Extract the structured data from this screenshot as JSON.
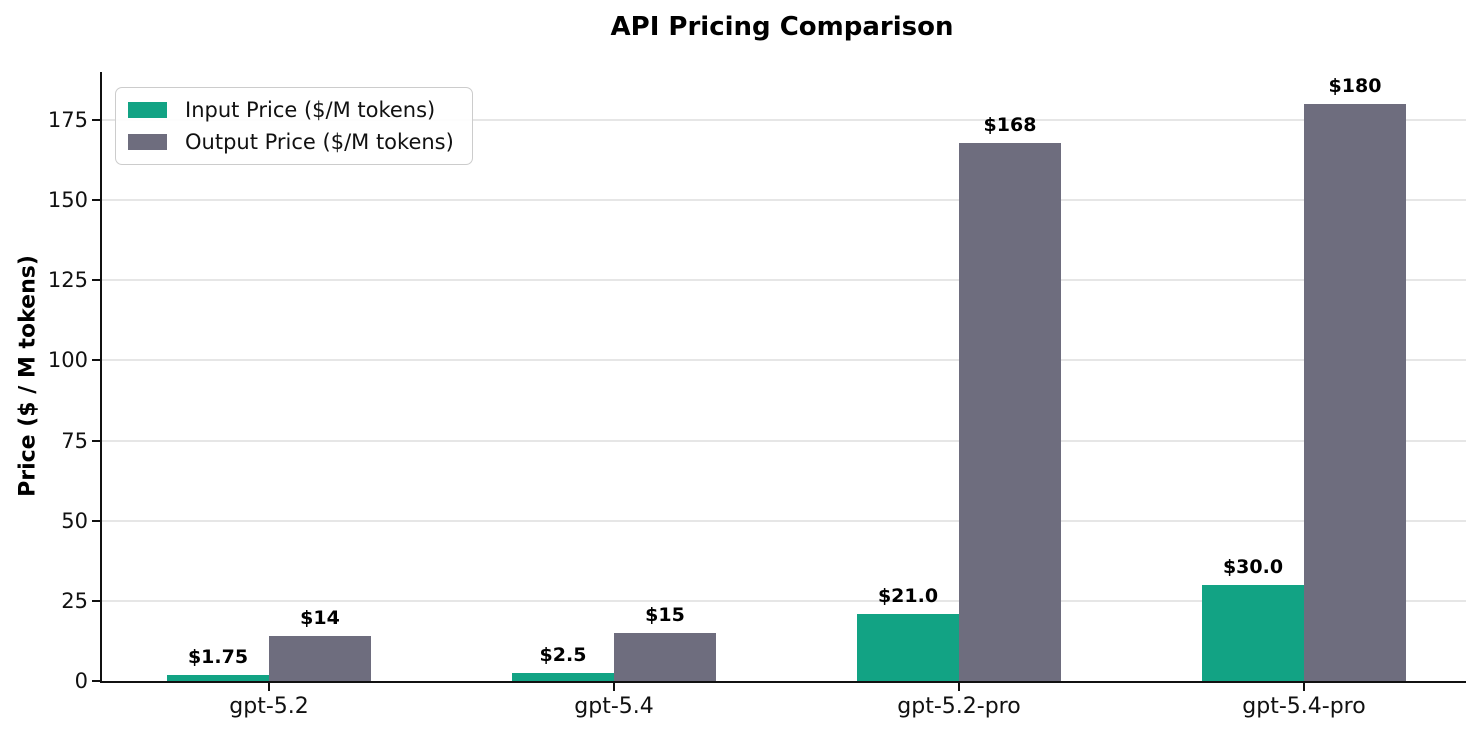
{
  "chart_data": {
    "type": "bar",
    "title": "API Pricing Comparison",
    "xlabel": "",
    "ylabel": "Price ($ / M tokens)",
    "categories": [
      "gpt-5.2",
      "gpt-5.4",
      "gpt-5.2-pro",
      "gpt-5.4-pro"
    ],
    "series": [
      {
        "name": "Input Price ($/M tokens)",
        "color": "#12a384",
        "values": [
          1.75,
          2.5,
          21.0,
          30.0
        ],
        "labels": [
          "$1.75",
          "$2.5",
          "$21.0",
          "$30.0"
        ]
      },
      {
        "name": "Output Price ($/M tokens)",
        "color": "#6e6d7e",
        "values": [
          14,
          15,
          168,
          180
        ],
        "labels": [
          "$14",
          "$15",
          "$168",
          "$180"
        ]
      }
    ],
    "yticks": [
      0,
      25,
      50,
      75,
      100,
      125,
      150,
      175
    ],
    "ylim": [
      0,
      190
    ],
    "grid": "horizontal",
    "legend_position": "upper-left",
    "background_color": "#ffffff",
    "grid_color": "#e6e6e6",
    "axis_color": "#111111"
  }
}
